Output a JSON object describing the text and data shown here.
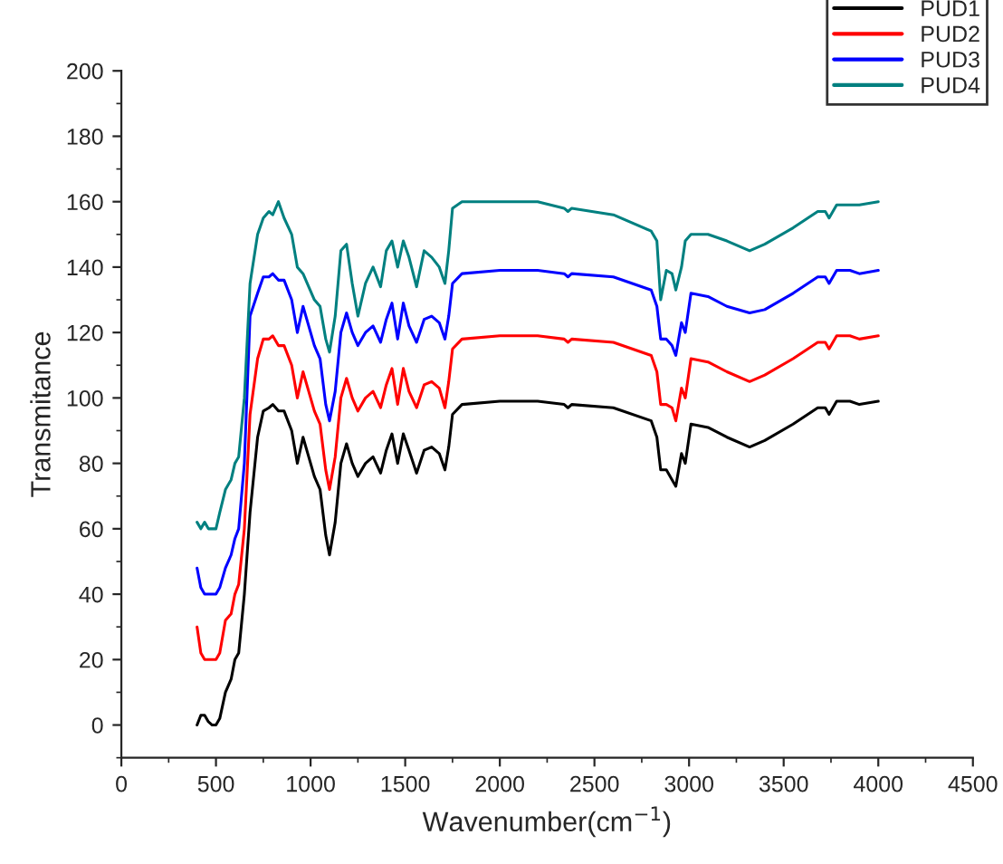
{
  "chart_data": {
    "type": "line",
    "xlabel": "Wavenumber(cm$^{−1}$)",
    "ylabel": "Transmitance",
    "x": [
      400,
      420,
      440,
      460,
      480,
      500,
      520,
      550,
      580,
      600,
      620,
      650,
      680,
      720,
      750,
      780,
      800,
      830,
      860,
      900,
      930,
      960,
      990,
      1020,
      1050,
      1080,
      1100,
      1130,
      1160,
      1190,
      1220,
      1250,
      1290,
      1330,
      1370,
      1400,
      1430,
      1460,
      1490,
      1520,
      1560,
      1600,
      1640,
      1680,
      1710,
      1730,
      1750,
      1800,
      2000,
      2200,
      2340,
      2360,
      2380,
      2600,
      2800,
      2830,
      2850,
      2880,
      2910,
      2930,
      2960,
      2980,
      3010,
      3100,
      3200,
      3320,
      3400,
      3550,
      3680,
      3720,
      3740,
      3780,
      3850,
      3900,
      4000
    ],
    "series": [
      {
        "name": "PUD1",
        "color": "#000000",
        "values": [
          0,
          3,
          3,
          1,
          0,
          0,
          2,
          10,
          14,
          20,
          22,
          40,
          65,
          88,
          96,
          97,
          98,
          96,
          96,
          90,
          80,
          88,
          82,
          76,
          72,
          58,
          52,
          62,
          80,
          86,
          80,
          76,
          80,
          82,
          77,
          84,
          89,
          80,
          89,
          84,
          77,
          84,
          85,
          83,
          78,
          85,
          95,
          98,
          99,
          99,
          98,
          97,
          98,
          97,
          93,
          88,
          78,
          78,
          75,
          73,
          83,
          80,
          92,
          91,
          88,
          85,
          87,
          92,
          97,
          97,
          95,
          99,
          99,
          98,
          99
        ]
      },
      {
        "name": "PUD2",
        "color": "#ff0000",
        "values": [
          30,
          22,
          20,
          20,
          20,
          20,
          22,
          32,
          34,
          40,
          43,
          60,
          95,
          112,
          118,
          118,
          119,
          116,
          116,
          110,
          100,
          108,
          102,
          96,
          92,
          78,
          72,
          82,
          100,
          106,
          100,
          96,
          100,
          102,
          97,
          104,
          109,
          98,
          109,
          102,
          97,
          104,
          105,
          103,
          97,
          105,
          115,
          118,
          119,
          119,
          118,
          117,
          118,
          117,
          113,
          108,
          98,
          98,
          97,
          93,
          103,
          100,
          112,
          111,
          108,
          105,
          107,
          112,
          117,
          117,
          115,
          119,
          119,
          118,
          119
        ]
      },
      {
        "name": "PUD3",
        "color": "#0000ff",
        "values": [
          48,
          42,
          40,
          40,
          40,
          40,
          42,
          48,
          52,
          57,
          60,
          80,
          125,
          132,
          137,
          137,
          138,
          136,
          136,
          130,
          120,
          128,
          122,
          116,
          112,
          98,
          93,
          102,
          120,
          126,
          120,
          116,
          120,
          122,
          117,
          124,
          129,
          118,
          129,
          122,
          117,
          124,
          125,
          123,
          118,
          125,
          135,
          138,
          139,
          139,
          138,
          137,
          138,
          137,
          133,
          128,
          118,
          118,
          116,
          113,
          123,
          120,
          132,
          131,
          128,
          126,
          127,
          132,
          137,
          137,
          135,
          139,
          139,
          138,
          139
        ]
      },
      {
        "name": "PUD4",
        "color": "#008080",
        "values": [
          62,
          60,
          62,
          60,
          60,
          60,
          65,
          72,
          75,
          80,
          82,
          100,
          135,
          150,
          155,
          157,
          156,
          160,
          155,
          150,
          140,
          138,
          134,
          130,
          128,
          118,
          114,
          125,
          145,
          147,
          135,
          125,
          135,
          140,
          134,
          145,
          148,
          140,
          148,
          143,
          134,
          145,
          143,
          140,
          135,
          145,
          158,
          160,
          160,
          160,
          158,
          157,
          158,
          156,
          151,
          148,
          130,
          139,
          138,
          133,
          140,
          148,
          150,
          150,
          148,
          145,
          147,
          152,
          157,
          157,
          155,
          159,
          159,
          159,
          160
        ]
      }
    ],
    "xlim": [
      0,
      4500
    ],
    "ylim": [
      -10,
      200
    ],
    "xticks": [
      0,
      500,
      1000,
      1500,
      2000,
      2500,
      3000,
      3500,
      4000,
      4500
    ],
    "yticks": [
      0,
      20,
      40,
      60,
      80,
      100,
      120,
      140,
      160,
      180,
      200
    ],
    "grid": false,
    "legend": "top right",
    "line_style": "solid",
    "marker": "none"
  }
}
